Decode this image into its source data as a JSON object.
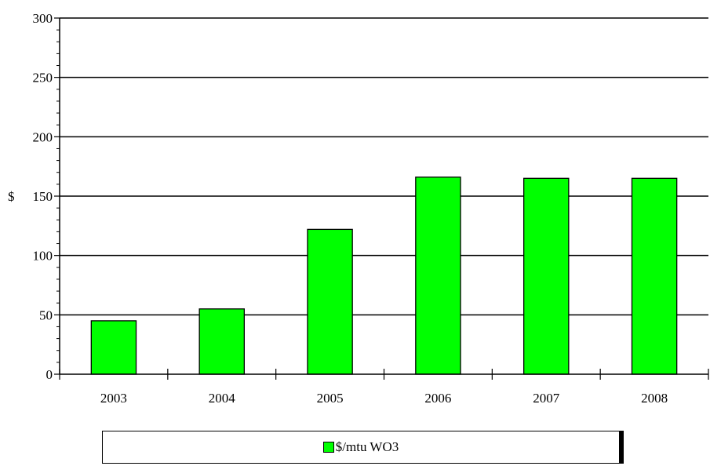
{
  "chart_data": {
    "type": "bar",
    "categories": [
      "2003",
      "2004",
      "2005",
      "2006",
      "2007",
      "2008"
    ],
    "series": [
      {
        "name": "$/mtu WO3",
        "values": [
          45,
          55,
          122,
          166,
          165,
          165
        ],
        "color": "#00ff00"
      }
    ],
    "title": "",
    "xlabel": "",
    "ylabel": "$",
    "ylim": [
      0,
      300
    ],
    "yticks": [
      "0",
      "50",
      "100",
      "150",
      "200",
      "250",
      "300"
    ],
    "grid": true,
    "legend": {
      "position": "bottom",
      "entries": [
        "$/mtu WO3"
      ]
    }
  }
}
